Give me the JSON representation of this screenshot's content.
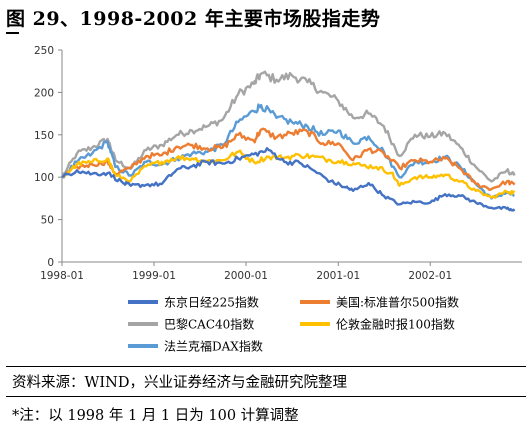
{
  "figure": {
    "title": "图 29、1998-2002 年主要市场股指走势",
    "source": "资料来源：WIND，兴业证券经济与金融研究院整理",
    "note": "*注：以 1998 年 1 月 1 日为 100 计算调整"
  },
  "chart_data": {
    "type": "line",
    "xlabel": "",
    "ylabel": "",
    "ylim": [
      0,
      250
    ],
    "yticks": [
      0,
      50,
      100,
      150,
      200,
      250
    ],
    "xlim": [
      "1998-01-01",
      "2002-12-31"
    ],
    "xticks": [
      "1998-01",
      "1999-01",
      "2000-01",
      "2001-01",
      "2002-01"
    ],
    "grid": false,
    "legend": "bottom",
    "series": [
      {
        "name": "东京日经225指数",
        "color": "#4472C4",
        "x": [
          "1998-01",
          "1998-03",
          "1998-05",
          "1998-07",
          "1998-09",
          "1998-10",
          "1998-12",
          "1999-02",
          "1999-04",
          "1999-06",
          "1999-08",
          "1999-10",
          "1999-12",
          "2000-02",
          "2000-04",
          "2000-06",
          "2000-08",
          "2000-10",
          "2000-12",
          "2001-02",
          "2001-03",
          "2001-05",
          "2001-07",
          "2001-09",
          "2001-11",
          "2002-01",
          "2002-03",
          "2002-05",
          "2002-07",
          "2002-09",
          "2002-11",
          "2002-12"
        ],
        "values": [
          100,
          108,
          104,
          105,
          93,
          90,
          91,
          92,
          109,
          113,
          118,
          116,
          122,
          127,
          132,
          118,
          117,
          107,
          95,
          88,
          84,
          93,
          78,
          68,
          71,
          70,
          80,
          78,
          70,
          64,
          63,
          60
        ]
      },
      {
        "name": "美国:标准普尔500指数",
        "color": "#ED7D31",
        "x": [
          "1998-01",
          "1998-03",
          "1998-05",
          "1998-07",
          "1998-08",
          "1998-10",
          "1998-12",
          "1999-02",
          "1999-04",
          "1999-06",
          "1999-08",
          "1999-10",
          "1999-12",
          "2000-02",
          "2000-03",
          "2000-05",
          "2000-07",
          "2000-09",
          "2000-11",
          "2001-01",
          "2001-03",
          "2001-05",
          "2001-07",
          "2001-09",
          "2001-11",
          "2002-01",
          "2002-03",
          "2002-05",
          "2002-07",
          "2002-09",
          "2002-11",
          "2002-12"
        ],
        "values": [
          100,
          112,
          115,
          118,
          104,
          111,
          125,
          126,
          136,
          138,
          134,
          135,
          150,
          143,
          156,
          147,
          152,
          154,
          140,
          140,
          120,
          133,
          128,
          111,
          120,
          118,
          122,
          110,
          92,
          86,
          95,
          91
        ]
      },
      {
        "name": "巴黎CAC40指数",
        "color": "#A5A5A5",
        "x": [
          "1998-01",
          "1998-03",
          "1998-05",
          "1998-07",
          "1998-08",
          "1998-10",
          "1998-12",
          "1999-02",
          "1999-04",
          "1999-06",
          "1999-08",
          "1999-10",
          "1999-12",
          "2000-02",
          "2000-03",
          "2000-05",
          "2000-07",
          "2000-09",
          "2000-11",
          "2001-01",
          "2001-03",
          "2001-05",
          "2001-07",
          "2001-09",
          "2001-11",
          "2002-01",
          "2002-03",
          "2002-05",
          "2002-07",
          "2002-09",
          "2002-11",
          "2002-12"
        ],
        "values": [
          100,
          128,
          135,
          145,
          120,
          110,
          132,
          138,
          150,
          155,
          160,
          168,
          198,
          210,
          222,
          215,
          220,
          212,
          200,
          190,
          170,
          175,
          160,
          125,
          150,
          148,
          152,
          135,
          112,
          95,
          108,
          102
        ]
      },
      {
        "name": "伦敦金融时报100指数",
        "color": "#FFC000",
        "x": [
          "1998-01",
          "1998-03",
          "1998-05",
          "1998-07",
          "1998-08",
          "1998-10",
          "1998-12",
          "1999-02",
          "1999-04",
          "1999-06",
          "1999-08",
          "1999-10",
          "1999-12",
          "2000-02",
          "2000-04",
          "2000-06",
          "2000-08",
          "2000-10",
          "2000-12",
          "2001-02",
          "2001-04",
          "2001-06",
          "2001-08",
          "2001-09",
          "2001-11",
          "2002-01",
          "2002-03",
          "2002-05",
          "2002-07",
          "2002-09",
          "2002-11",
          "2002-12"
        ],
        "values": [
          100,
          115,
          118,
          122,
          102,
          96,
          113,
          118,
          123,
          122,
          119,
          120,
          130,
          118,
          124,
          123,
          126,
          124,
          120,
          118,
          114,
          112,
          105,
          90,
          100,
          100,
          103,
          95,
          84,
          76,
          83,
          82
        ]
      },
      {
        "name": "法兰克福DAX指数",
        "color": "#5B9BD5",
        "x": [
          "1998-01",
          "1998-03",
          "1998-05",
          "1998-07",
          "1998-08",
          "1998-10",
          "1998-12",
          "1999-02",
          "1999-04",
          "1999-06",
          "1999-08",
          "1999-10",
          "1999-12",
          "2000-02",
          "2000-03",
          "2000-05",
          "2000-07",
          "2000-09",
          "2000-11",
          "2001-01",
          "2001-03",
          "2001-05",
          "2001-07",
          "2001-09",
          "2001-11",
          "2002-01",
          "2002-03",
          "2002-05",
          "2002-07",
          "2002-09",
          "2002-11",
          "2002-12"
        ],
        "values": [
          100,
          118,
          128,
          142,
          112,
          102,
          118,
          115,
          122,
          128,
          130,
          138,
          165,
          178,
          185,
          170,
          165,
          160,
          150,
          155,
          140,
          148,
          130,
          100,
          118,
          118,
          124,
          112,
          92,
          75,
          82,
          78
        ]
      }
    ]
  }
}
